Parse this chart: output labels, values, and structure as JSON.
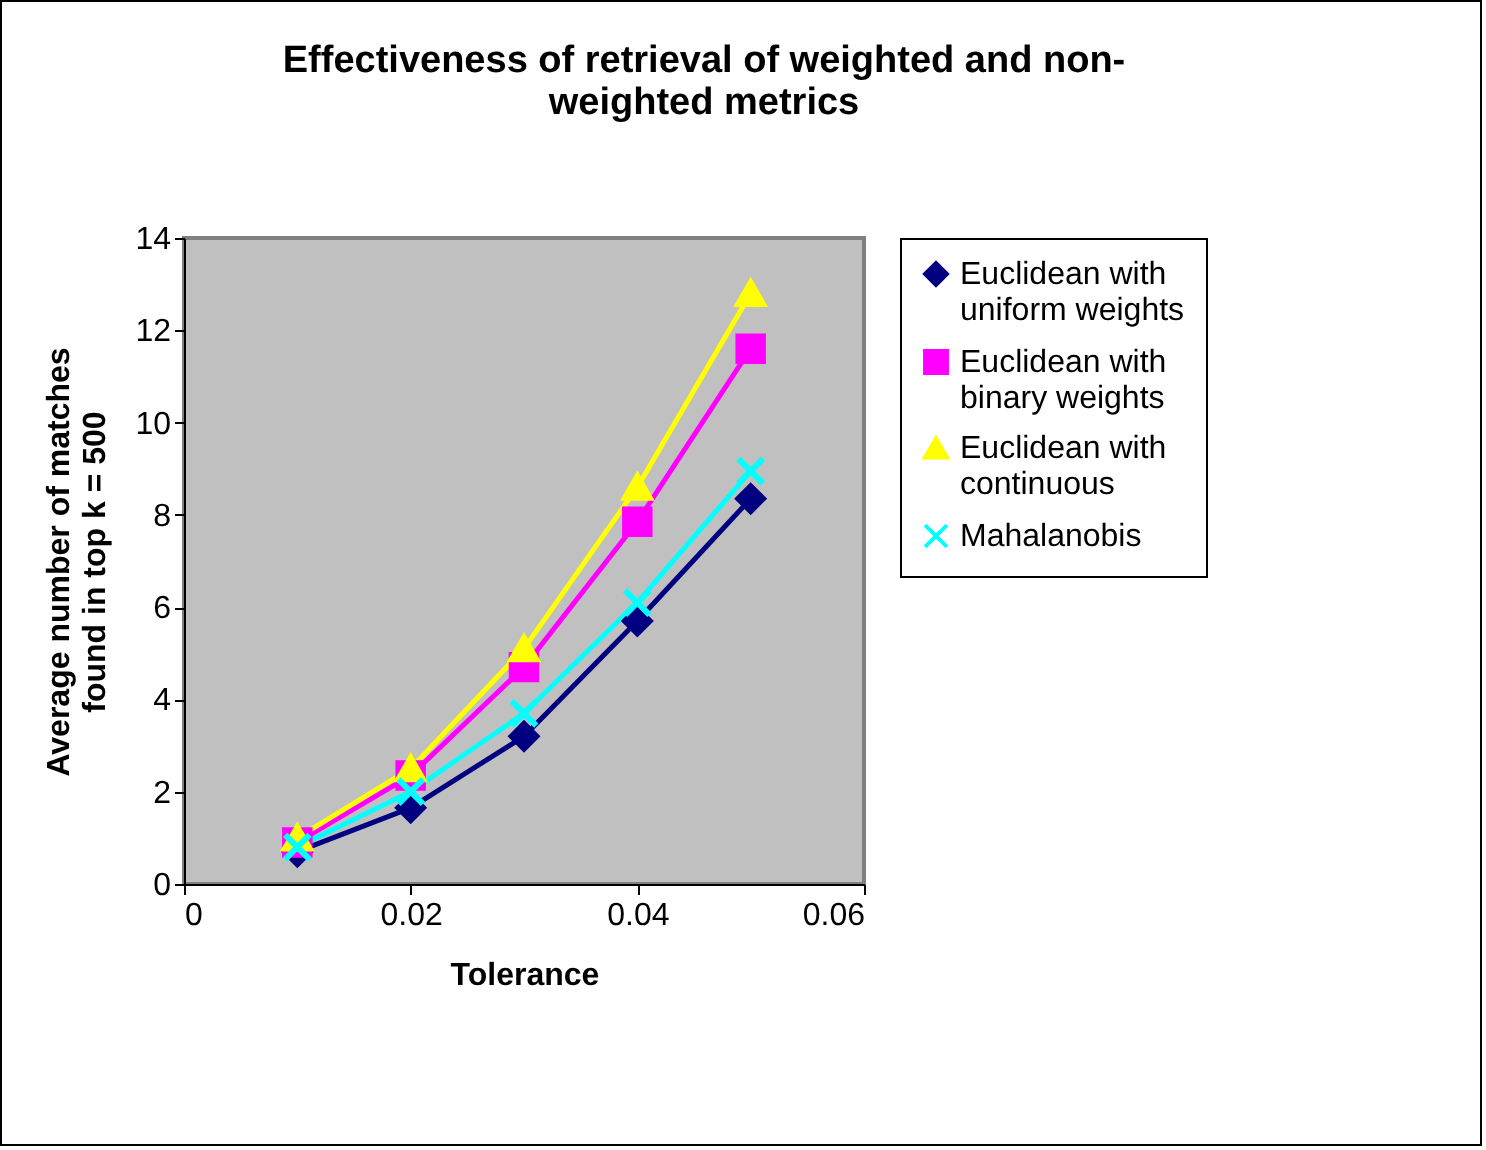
{
  "chart_data": {
    "type": "line",
    "title": "Effectiveness of retrieval of weighted and non-weighted metrics",
    "xlabel": "Tolerance",
    "ylabel": "Average number of matches found in top k = 500",
    "x": [
      0.01,
      0.02,
      0.03,
      0.04,
      0.05
    ],
    "series": [
      {
        "name": "Euclidean with uniform weights",
        "color": "#000080",
        "marker": "diamond",
        "values": [
          0.7,
          1.65,
          3.2,
          5.7,
          8.35
        ]
      },
      {
        "name": "Euclidean with binary weights",
        "color": "#ff00ff",
        "marker": "square",
        "values": [
          0.9,
          2.35,
          4.7,
          7.85,
          11.6
        ]
      },
      {
        "name": "Euclidean with continuous",
        "color": "#ffff00",
        "marker": "triangle",
        "values": [
          1.0,
          2.5,
          5.1,
          8.6,
          12.8
        ]
      },
      {
        "name": "Mahalanobis",
        "color": "#00ffff",
        "marker": "cross",
        "values": [
          0.8,
          2.0,
          3.7,
          6.1,
          8.95
        ]
      }
    ],
    "xlim": [
      0,
      0.06
    ],
    "xticks": [
      0,
      0.02,
      0.04,
      0.06
    ],
    "ylim": [
      0,
      14
    ],
    "yticks": [
      0,
      2,
      4,
      6,
      8,
      10,
      12,
      14
    ],
    "grid": false,
    "legend": "right"
  }
}
